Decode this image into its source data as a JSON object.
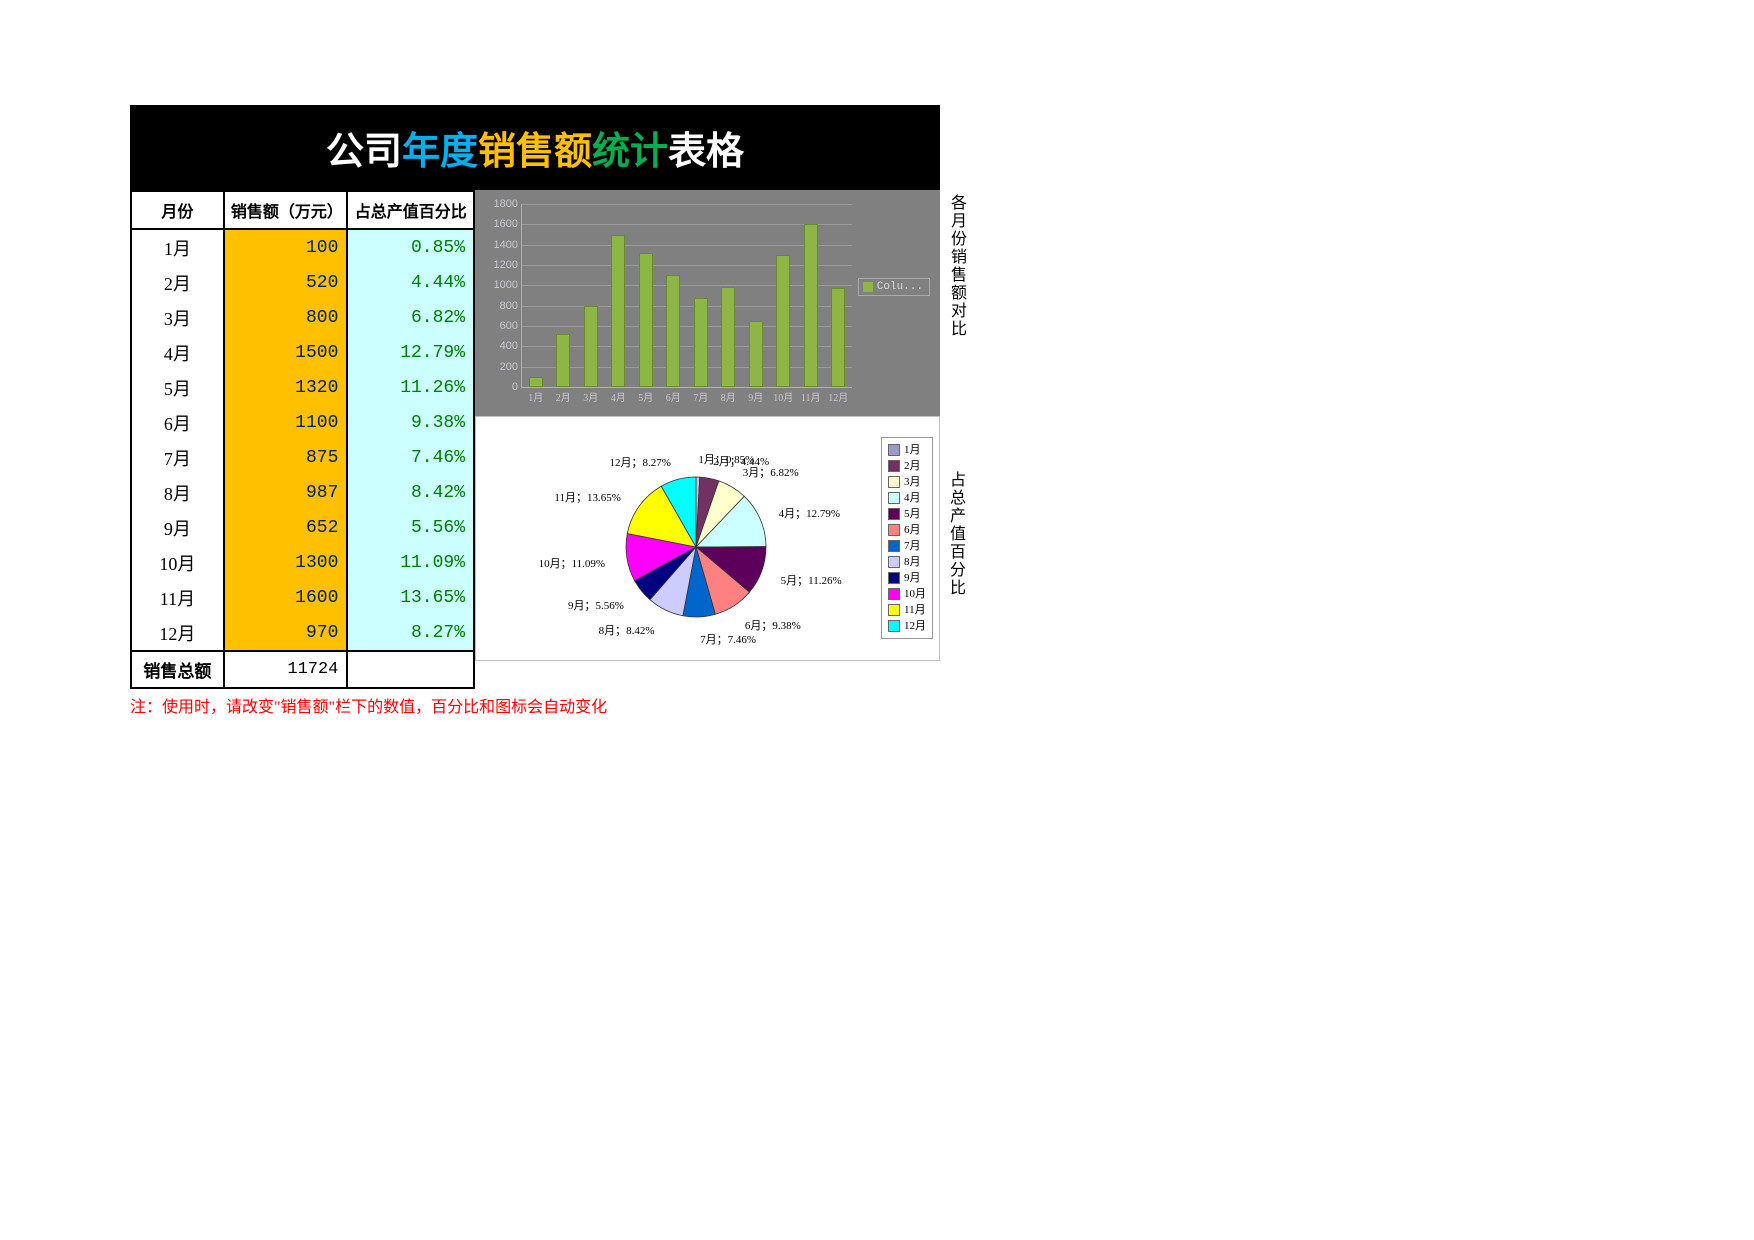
{
  "title": {
    "segments": [
      {
        "text": "公司",
        "color": "#ffffff"
      },
      {
        "text": "年度",
        "color": "#00b0f0"
      },
      {
        "text": "销售额",
        "color": "#ffc000"
      },
      {
        "text": "统计",
        "color": "#00b050"
      },
      {
        "text": "表格",
        "color": "#ffffff"
      }
    ]
  },
  "table": {
    "headers": {
      "month": "月份",
      "sales": "销售额（万元）",
      "pct": "占总产值百分比"
    },
    "rows": [
      {
        "month": "1月",
        "sales": 100,
        "pct": "0.85%"
      },
      {
        "month": "2月",
        "sales": 520,
        "pct": "4.44%"
      },
      {
        "month": "3月",
        "sales": 800,
        "pct": "6.82%"
      },
      {
        "month": "4月",
        "sales": 1500,
        "pct": "12.79%"
      },
      {
        "month": "5月",
        "sales": 1320,
        "pct": "11.26%"
      },
      {
        "month": "6月",
        "sales": 1100,
        "pct": "9.38%"
      },
      {
        "month": "7月",
        "sales": 875,
        "pct": "7.46%"
      },
      {
        "month": "8月",
        "sales": 987,
        "pct": "8.42%"
      },
      {
        "month": "9月",
        "sales": 652,
        "pct": "5.56%"
      },
      {
        "month": "10月",
        "sales": 1300,
        "pct": "11.09%"
      },
      {
        "month": "11月",
        "sales": 1600,
        "pct": "13.65%"
      },
      {
        "month": "12月",
        "sales": 970,
        "pct": "8.27%"
      }
    ],
    "total_label": "销售总额",
    "total_value": 11724
  },
  "bar_chart": {
    "title": "各月份销售额对比",
    "type": "bar",
    "categories": [
      "1月",
      "2月",
      "3月",
      "4月",
      "5月",
      "6月",
      "7月",
      "8月",
      "9月",
      "10月",
      "11月",
      "12月"
    ],
    "values": [
      100,
      520,
      800,
      1500,
      1320,
      1100,
      875,
      987,
      652,
      1300,
      1600,
      970
    ],
    "ylim": [
      0,
      1800
    ],
    "ytick_step": 200,
    "bar_color": "#8db646",
    "bar_border": "#6a8a30",
    "background_color": "#808080",
    "grid_color": "#9a9a9a",
    "axis_text_color": "#c8c8d0",
    "legend_label": "Colu...",
    "label_fontsize": 11
  },
  "pie_chart": {
    "title": "占总产值百分比",
    "type": "pie",
    "slices": [
      {
        "label": "1月",
        "value": 0.85,
        "color": "#c6c6e6",
        "legend_sw": "#9999cc"
      },
      {
        "label": "2月",
        "value": 4.44,
        "color": "#733163",
        "legend_sw": "#733163"
      },
      {
        "label": "3月",
        "value": 6.82,
        "color": "#ffffcc",
        "legend_sw": "#ffffcc"
      },
      {
        "label": "4月",
        "value": 12.79,
        "color": "#ccffff",
        "legend_sw": "#ccffff"
      },
      {
        "label": "5月",
        "value": 11.26,
        "color": "#5c005c",
        "legend_sw": "#5c005c"
      },
      {
        "label": "6月",
        "value": 9.38,
        "color": "#ff8080",
        "legend_sw": "#ff8080"
      },
      {
        "label": "7月",
        "value": 7.46,
        "color": "#0066cc",
        "legend_sw": "#0066cc"
      },
      {
        "label": "8月",
        "value": 8.42,
        "color": "#ccccff",
        "legend_sw": "#ccccff"
      },
      {
        "label": "9月",
        "value": 5.56,
        "color": "#000080",
        "legend_sw": "#000080"
      },
      {
        "label": "10月",
        "value": 11.09,
        "color": "#ff00ff",
        "legend_sw": "#ff00ff"
      },
      {
        "label": "11月",
        "value": 13.65,
        "color": "#ffff00",
        "legend_sw": "#ffff00"
      },
      {
        "label": "12月",
        "value": 8.27,
        "color": "#00ffff",
        "legend_sw": "#00ffff"
      }
    ],
    "radius": 70,
    "stroke": "#333333",
    "label_fontsize": 11
  },
  "note": "注：使用时，请改变\"销售额\"栏下的数值，百分比和图标会自动变化"
}
